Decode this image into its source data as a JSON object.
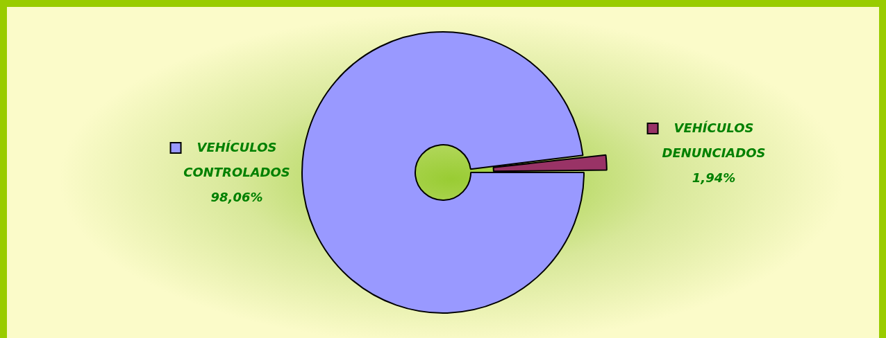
{
  "chart_data": {
    "type": "donut",
    "categories": [
      "VEHÍCULOS CONTROLADOS",
      "VEHÍCULOS DENUNCIADOS"
    ],
    "values": [
      98.06,
      1.94
    ],
    "value_labels": [
      "98,06%",
      "1,94%"
    ],
    "colors": [
      "#9999ff",
      "#993366"
    ],
    "legend": "right"
  }
}
